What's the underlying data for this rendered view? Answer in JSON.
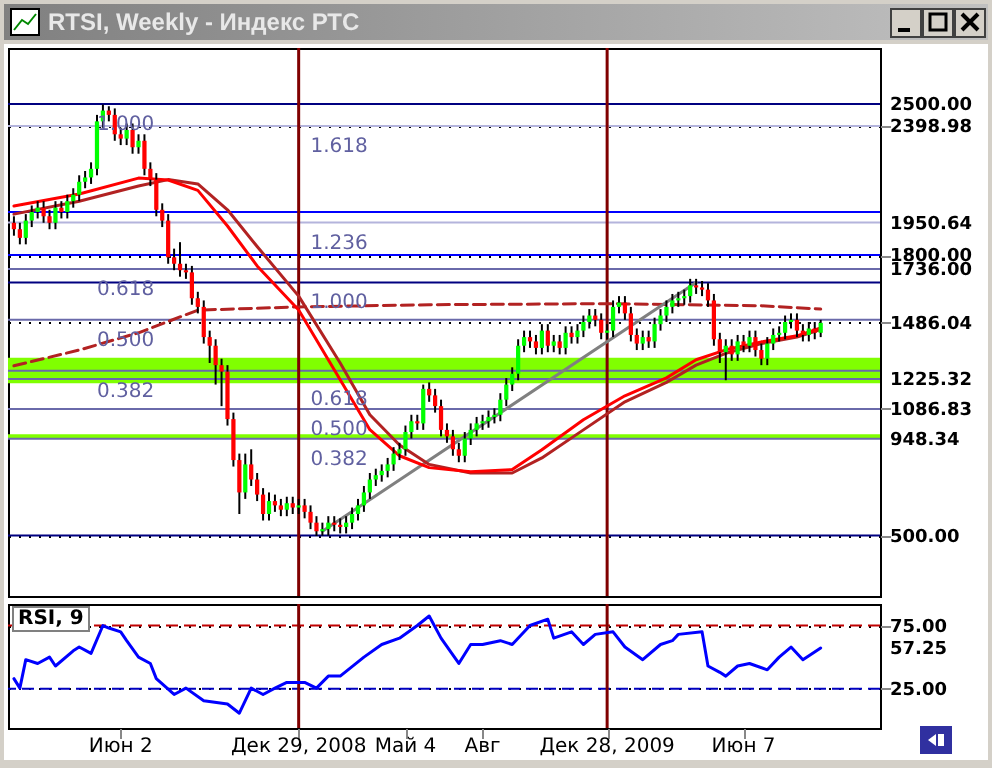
{
  "chart_data": [
    {
      "type": "candlestick",
      "title": "RTSI, Weekly - Индекс РТС",
      "xlim": [
        "2008-01-21",
        "2010-11-15"
      ],
      "ylim": [
        220,
        2760
      ],
      "yticks": [
        {
          "value": 500,
          "label": "500.00"
        },
        {
          "value": 948.34,
          "label": "948.34"
        },
        {
          "value": 1086.83,
          "label": "1086.83"
        },
        {
          "value": 1225.32,
          "label": "1225.32"
        },
        {
          "value": 1486.04,
          "label": "1486.04"
        },
        {
          "value": 1736,
          "label": "1736.00"
        },
        {
          "value": 1800,
          "label": "1800.00"
        },
        {
          "value": 1950.64,
          "label": "1950.64"
        },
        {
          "value": 2398.98,
          "label": "2398.98"
        },
        {
          "value": 2500,
          "label": "2500.00"
        }
      ],
      "tick_labels": "y",
      "grid": "y",
      "x": [
        "2008-01-28",
        "2008-02-04",
        "2008-02-11",
        "2008-02-18",
        "2008-02-25",
        "2008-03-03",
        "2008-03-10",
        "2008-03-17",
        "2008-03-24",
        "2008-03-31",
        "2008-04-07",
        "2008-04-14",
        "2008-04-21",
        "2008-04-28",
        "2008-05-05",
        "2008-05-12",
        "2008-05-19",
        "2008-05-26",
        "2008-06-02",
        "2008-06-09",
        "2008-06-16",
        "2008-06-23",
        "2008-06-30",
        "2008-07-07",
        "2008-07-14",
        "2008-07-21",
        "2008-07-28",
        "2008-08-04",
        "2008-08-11",
        "2008-08-18",
        "2008-08-25",
        "2008-09-01",
        "2008-09-08",
        "2008-09-15",
        "2008-09-22",
        "2008-09-29",
        "2008-10-06",
        "2008-10-13",
        "2008-10-20",
        "2008-10-27",
        "2008-11-03",
        "2008-11-10",
        "2008-11-17",
        "2008-11-24",
        "2008-12-01",
        "2008-12-08",
        "2008-12-15",
        "2008-12-22",
        "2008-12-29",
        "2009-01-05",
        "2009-01-12",
        "2009-01-19",
        "2009-01-26",
        "2009-02-02",
        "2009-02-09",
        "2009-02-16",
        "2009-02-23",
        "2009-03-02",
        "2009-03-09",
        "2009-03-16",
        "2009-03-23",
        "2009-03-30",
        "2009-04-06",
        "2009-04-13",
        "2009-04-20",
        "2009-04-27",
        "2009-05-04",
        "2009-05-11",
        "2009-05-18",
        "2009-05-25",
        "2009-06-01",
        "2009-06-08",
        "2009-06-15",
        "2009-06-22",
        "2009-06-29",
        "2009-07-06",
        "2009-07-13",
        "2009-07-20",
        "2009-07-27",
        "2009-08-03",
        "2009-08-10",
        "2009-08-17",
        "2009-08-24",
        "2009-08-31",
        "2009-09-07",
        "2009-09-14",
        "2009-09-21",
        "2009-09-28",
        "2009-10-05",
        "2009-10-12",
        "2009-10-19",
        "2009-10-26",
        "2009-11-02",
        "2009-11-09",
        "2009-11-16",
        "2009-11-23",
        "2009-11-30",
        "2009-12-07",
        "2009-12-14",
        "2009-12-21",
        "2009-12-28",
        "2010-01-04",
        "2010-01-11",
        "2010-01-18",
        "2010-01-25",
        "2010-02-01",
        "2010-02-08",
        "2010-02-15",
        "2010-02-22",
        "2010-03-01",
        "2010-03-08",
        "2010-03-15",
        "2010-03-22",
        "2010-03-29",
        "2010-04-05",
        "2010-04-12",
        "2010-04-19",
        "2010-04-26",
        "2010-05-03",
        "2010-05-10",
        "2010-05-17",
        "2010-05-24",
        "2010-05-31",
        "2010-06-07",
        "2010-06-14",
        "2010-06-21",
        "2010-06-28",
        "2010-07-05",
        "2010-07-12",
        "2010-07-19",
        "2010-07-26",
        "2010-08-02",
        "2010-08-09",
        "2010-08-16",
        "2010-08-23",
        "2010-08-30",
        "2010-09-06"
      ],
      "ohlc": [
        [
          1950,
          1980,
          1890,
          1920
        ],
        [
          1920,
          1950,
          1850,
          1880
        ],
        [
          1880,
          1990,
          1850,
          1960
        ],
        [
          1960,
          2030,
          1930,
          2000
        ],
        [
          2000,
          2050,
          1970,
          2020
        ],
        [
          2020,
          2050,
          1950,
          1980
        ],
        [
          1980,
          2010,
          1920,
          1950
        ],
        [
          1950,
          2050,
          1920,
          2020
        ],
        [
          2020,
          2050,
          1970,
          2000
        ],
        [
          2000,
          2080,
          1970,
          2050
        ],
        [
          2050,
          2110,
          2020,
          2080
        ],
        [
          2080,
          2170,
          2050,
          2140
        ],
        [
          2140,
          2190,
          2110,
          2160
        ],
        [
          2160,
          2230,
          2130,
          2200
        ],
        [
          2200,
          2450,
          2170,
          2420
        ],
        [
          2420,
          2498,
          2390,
          2470
        ],
        [
          2470,
          2490,
          2420,
          2450
        ],
        [
          2450,
          2480,
          2330,
          2360
        ],
        [
          2360,
          2390,
          2310,
          2340
        ],
        [
          2340,
          2410,
          2310,
          2380
        ],
        [
          2380,
          2410,
          2270,
          2300
        ],
        [
          2300,
          2360,
          2270,
          2330
        ],
        [
          2330,
          2360,
          2170,
          2200
        ],
        [
          2200,
          2230,
          2120,
          2150
        ],
        [
          2150,
          2180,
          1980,
          2010
        ],
        [
          2010,
          2040,
          1930,
          1960
        ],
        [
          1960,
          1990,
          1760,
          1790
        ],
        [
          1790,
          1830,
          1730,
          1760
        ],
        [
          1760,
          1860,
          1700,
          1730
        ],
        [
          1730,
          1760,
          1690,
          1720
        ],
        [
          1720,
          1750,
          1570,
          1600
        ],
        [
          1600,
          1630,
          1530,
          1560
        ],
        [
          1560,
          1590,
          1390,
          1420
        ],
        [
          1420,
          1450,
          1300,
          1380
        ],
        [
          1380,
          1410,
          1200,
          1290
        ],
        [
          1290,
          1320,
          1100,
          1260
        ],
        [
          1260,
          1290,
          1010,
          1040
        ],
        [
          1040,
          1070,
          820,
          850
        ],
        [
          850,
          880,
          600,
          700
        ],
        [
          700,
          880,
          670,
          830
        ],
        [
          830,
          900,
          730,
          760
        ],
        [
          760,
          790,
          660,
          690
        ],
        [
          690,
          720,
          570,
          600
        ],
        [
          600,
          700,
          570,
          660
        ],
        [
          660,
          690,
          610,
          640
        ],
        [
          640,
          670,
          590,
          620
        ],
        [
          620,
          680,
          590,
          650
        ],
        [
          650,
          680,
          600,
          630
        ],
        [
          630,
          670,
          600,
          640
        ],
        [
          640,
          670,
          580,
          610
        ],
        [
          610,
          640,
          530,
          560
        ],
        [
          560,
          590,
          498,
          520
        ],
        [
          520,
          560,
          500,
          530
        ],
        [
          530,
          590,
          500,
          560
        ],
        [
          560,
          590,
          520,
          550
        ],
        [
          550,
          580,
          510,
          540
        ],
        [
          540,
          590,
          510,
          560
        ],
        [
          560,
          630,
          530,
          600
        ],
        [
          600,
          670,
          570,
          640
        ],
        [
          640,
          730,
          610,
          700
        ],
        [
          700,
          790,
          670,
          760
        ],
        [
          760,
          810,
          730,
          780
        ],
        [
          780,
          830,
          750,
          800
        ],
        [
          800,
          860,
          770,
          830
        ],
        [
          830,
          910,
          800,
          880
        ],
        [
          880,
          930,
          850,
          900
        ],
        [
          900,
          1010,
          870,
          980
        ],
        [
          980,
          1060,
          950,
          1030
        ],
        [
          1030,
          1060,
          990,
          1020
        ],
        [
          1020,
          1200,
          990,
          1180
        ],
        [
          1180,
          1210,
          1120,
          1150
        ],
        [
          1150,
          1180,
          1070,
          1100
        ],
        [
          1100,
          1130,
          960,
          990
        ],
        [
          990,
          1020,
          930,
          960
        ],
        [
          960,
          990,
          870,
          900
        ],
        [
          900,
          930,
          840,
          870
        ],
        [
          870,
          980,
          840,
          950
        ],
        [
          950,
          1020,
          920,
          990
        ],
        [
          990,
          1050,
          960,
          1020
        ],
        [
          1020,
          1060,
          990,
          1030
        ],
        [
          1030,
          1080,
          1000,
          1050
        ],
        [
          1050,
          1090,
          1020,
          1060
        ],
        [
          1060,
          1160,
          1030,
          1130
        ],
        [
          1130,
          1230,
          1100,
          1200
        ],
        [
          1200,
          1280,
          1170,
          1250
        ],
        [
          1250,
          1410,
          1220,
          1380
        ],
        [
          1380,
          1450,
          1350,
          1420
        ],
        [
          1420,
          1450,
          1370,
          1400
        ],
        [
          1400,
          1430,
          1340,
          1370
        ],
        [
          1370,
          1480,
          1340,
          1450
        ],
        [
          1450,
          1480,
          1350,
          1380
        ],
        [
          1380,
          1430,
          1350,
          1400
        ],
        [
          1400,
          1430,
          1340,
          1370
        ],
        [
          1370,
          1470,
          1340,
          1440
        ],
        [
          1440,
          1470,
          1390,
          1420
        ],
        [
          1420,
          1480,
          1390,
          1450
        ],
        [
          1450,
          1520,
          1420,
          1490
        ],
        [
          1490,
          1550,
          1460,
          1520
        ],
        [
          1520,
          1550,
          1470,
          1500
        ],
        [
          1500,
          1530,
          1410,
          1440
        ],
        [
          1440,
          1480,
          1410,
          1450
        ],
        [
          1450,
          1590,
          1420,
          1560
        ],
        [
          1560,
          1610,
          1530,
          1580
        ],
        [
          1580,
          1610,
          1500,
          1530
        ],
        [
          1530,
          1560,
          1400,
          1430
        ],
        [
          1430,
          1460,
          1360,
          1390
        ],
        [
          1390,
          1450,
          1360,
          1420
        ],
        [
          1420,
          1450,
          1370,
          1400
        ],
        [
          1400,
          1510,
          1370,
          1480
        ],
        [
          1480,
          1550,
          1450,
          1520
        ],
        [
          1520,
          1590,
          1490,
          1560
        ],
        [
          1560,
          1620,
          1530,
          1590
        ],
        [
          1590,
          1630,
          1560,
          1600
        ],
        [
          1600,
          1640,
          1570,
          1610
        ],
        [
          1610,
          1690,
          1580,
          1660
        ],
        [
          1660,
          1690,
          1620,
          1650
        ],
        [
          1650,
          1680,
          1610,
          1640
        ],
        [
          1640,
          1670,
          1560,
          1590
        ],
        [
          1590,
          1620,
          1380,
          1410
        ],
        [
          1410,
          1440,
          1300,
          1350
        ],
        [
          1350,
          1410,
          1220,
          1380
        ],
        [
          1380,
          1410,
          1310,
          1340
        ],
        [
          1340,
          1430,
          1310,
          1400
        ],
        [
          1400,
          1430,
          1350,
          1380
        ],
        [
          1380,
          1450,
          1350,
          1420
        ],
        [
          1420,
          1450,
          1330,
          1360
        ],
        [
          1360,
          1390,
          1290,
          1320
        ],
        [
          1320,
          1420,
          1290,
          1390
        ],
        [
          1390,
          1460,
          1360,
          1430
        ],
        [
          1430,
          1470,
          1400,
          1440
        ],
        [
          1440,
          1520,
          1410,
          1490
        ],
        [
          1490,
          1530,
          1460,
          1500
        ],
        [
          1500,
          1530,
          1420,
          1450
        ],
        [
          1450,
          1480,
          1400,
          1430
        ],
        [
          1430,
          1490,
          1400,
          1460
        ],
        [
          1460,
          1490,
          1410,
          1440
        ],
        [
          1440,
          1500,
          1420,
          1486.04
        ]
      ],
      "series": [
        {
          "type": "line",
          "color": "#b22222",
          "line_style": "dashed",
          "x": [
            "2008-01-28",
            "2008-04-14",
            "2008-06-23",
            "2008-09-01",
            "2008-12-29",
            "2009-06-01",
            "2009-12-28",
            "2010-06-28",
            "2010-09-06"
          ],
          "values": [
            1287,
            1360,
            1440,
            1545,
            1560,
            1570,
            1575,
            1565,
            1550
          ]
        },
        {
          "type": "line",
          "color": "#808080",
          "line_style": "solid",
          "x": [
            "2009-01-26",
            "2010-04-12"
          ],
          "values": [
            520,
            1673.6
          ]
        },
        {
          "type": "line",
          "color": "#b22222",
          "line_style": "solid",
          "x": [
            "2008-01-28",
            "2008-04-14",
            "2008-06-23",
            "2008-07-28",
            "2008-09-01",
            "2008-10-06",
            "2008-11-10",
            "2008-12-29",
            "2009-02-16",
            "2009-03-23",
            "2009-04-27",
            "2009-06-01",
            "2009-07-20",
            "2009-09-07",
            "2009-10-12",
            "2009-11-30",
            "2010-01-18",
            "2010-03-08",
            "2010-04-12",
            "2010-05-17",
            "2010-06-28",
            "2010-08-09",
            "2010-09-06"
          ],
          "values": [
            1990,
            2050,
            2120,
            2150,
            2130,
            2010,
            1840,
            1610,
            1300,
            1060,
            920,
            830,
            790,
            790,
            860,
            990,
            1120,
            1210,
            1290,
            1345,
            1390,
            1420,
            1455
          ]
        },
        {
          "type": "line",
          "color": "#ff0000",
          "line_style": "solid",
          "x": [
            "2008-01-28",
            "2008-04-14",
            "2008-06-23",
            "2008-07-28",
            "2008-09-01",
            "2008-10-06",
            "2008-11-10",
            "2008-12-29",
            "2009-02-16",
            "2009-03-23",
            "2009-04-27",
            "2009-06-01",
            "2009-07-20",
            "2009-09-07",
            "2009-10-12",
            "2009-11-30",
            "2010-01-18",
            "2010-03-08",
            "2010-04-12",
            "2010-05-17",
            "2010-06-28",
            "2010-08-09",
            "2010-09-06"
          ],
          "values": [
            2028,
            2083,
            2157,
            2148,
            2100,
            1935,
            1750,
            1546,
            1222,
            991,
            870,
            815,
            796,
            806,
            898,
            1037,
            1148,
            1231,
            1315,
            1361,
            1398,
            1426,
            1463
          ]
        }
      ],
      "bands": [
        {
          "axis": "y",
          "from": 1206,
          "to": 1324,
          "color": "#80ff00"
        },
        {
          "axis": "y",
          "from": 950,
          "to": 970,
          "color": "#80ff00"
        }
      ],
      "ref_lines": [
        {
          "axis": "y",
          "value": 2500,
          "color": "#000080"
        },
        {
          "axis": "y",
          "value": 2398.98,
          "color": "#b4b4dc"
        },
        {
          "axis": "y",
          "value": 2000,
          "color": "#0000ff"
        },
        {
          "axis": "y",
          "value": 1950.64,
          "color": "#b4b4dc"
        },
        {
          "axis": "y",
          "value": 1800,
          "color": "#0000ff"
        },
        {
          "axis": "y",
          "value": 1736,
          "color": "#6a6aaa"
        },
        {
          "axis": "y",
          "value": 1673.6,
          "color": "#000080"
        },
        {
          "axis": "y",
          "value": 1500,
          "color": "#6a6aaa"
        },
        {
          "axis": "y",
          "value": 1264,
          "color": "#6a6aaa"
        },
        {
          "axis": "y",
          "value": 1225.32,
          "color": "#6a6aaa"
        },
        {
          "axis": "y",
          "value": 1086.83,
          "color": "#6a6aaa"
        },
        {
          "axis": "y",
          "value": 948.34,
          "color": "#6a6aaa"
        },
        {
          "axis": "y",
          "value": 500,
          "color": "#000080"
        },
        {
          "axis": "x",
          "value": "2008-12-29",
          "color": "#800000"
        },
        {
          "axis": "x",
          "value": "2009-12-28",
          "color": "#800000"
        }
      ],
      "annotations": [
        {
          "text": "1.000",
          "x": "2008-05-05",
          "y": 2500
        },
        {
          "text": "0.618",
          "x": "2008-05-05",
          "y": 1736
        },
        {
          "text": "0.500",
          "x": "2008-05-05",
          "y": 1500
        },
        {
          "text": "0.382",
          "x": "2008-05-05",
          "y": 1264
        },
        {
          "text": "1.618",
          "x": "2009-01-12",
          "y": 2398.98
        },
        {
          "text": "1.236",
          "x": "2009-01-12",
          "y": 1950.64
        },
        {
          "text": "1.000",
          "x": "2009-01-12",
          "y": 1673.6
        },
        {
          "text": "0.618",
          "x": "2009-01-12",
          "y": 1225.32
        },
        {
          "text": "0.500",
          "x": "2009-01-12",
          "y": 1086.83
        },
        {
          "text": "0.382",
          "x": "2009-01-12",
          "y": 948.34
        }
      ]
    },
    {
      "type": "line",
      "title": "RSI, 9",
      "xlim": [
        "2008-01-21",
        "2010-11-15"
      ],
      "ylim": [
        -6,
        92
      ],
      "xticks": [
        {
          "value": "2008-06-02",
          "label": "Июн 2"
        },
        {
          "value": "2008-12-29",
          "label": "Дек 29, 2008"
        },
        {
          "value": "2009-05-04",
          "label": "Май 4"
        },
        {
          "value": "2009-08-03",
          "label": "Авг"
        },
        {
          "value": "2009-12-28",
          "label": "Дек 28, 2009"
        },
        {
          "value": "2010-06-07",
          "label": "Июн 7"
        }
      ],
      "yticks": [
        {
          "value": 25,
          "label": "25.00"
        },
        {
          "value": 57.25,
          "label": "57.25"
        },
        {
          "value": 75,
          "label": "75.00"
        }
      ],
      "grid": "y",
      "x": [
        "2008-01-28",
        "2008-02-04",
        "2008-02-11",
        "2008-02-25",
        "2008-03-10",
        "2008-03-17",
        "2008-04-07",
        "2008-04-14",
        "2008-04-28",
        "2008-05-12",
        "2008-05-19",
        "2008-06-02",
        "2008-06-09",
        "2008-06-23",
        "2008-07-07",
        "2008-07-14",
        "2008-08-04",
        "2008-08-18",
        "2008-09-08",
        "2008-10-06",
        "2008-10-20",
        "2008-11-03",
        "2008-11-17",
        "2008-12-01",
        "2008-12-15",
        "2009-01-05",
        "2009-01-19",
        "2009-02-02",
        "2009-02-16",
        "2009-03-16",
        "2009-04-06",
        "2009-04-27",
        "2009-05-18",
        "2009-06-01",
        "2009-06-15",
        "2009-07-06",
        "2009-07-20",
        "2009-08-03",
        "2009-08-24",
        "2009-09-07",
        "2009-09-28",
        "2009-10-19",
        "2009-10-26",
        "2009-11-16",
        "2009-11-30",
        "2009-12-14",
        "2010-01-04",
        "2010-01-18",
        "2010-02-08",
        "2010-03-01",
        "2010-03-15",
        "2010-03-22",
        "2010-04-19",
        "2010-04-26",
        "2010-05-10",
        "2010-05-17",
        "2010-05-31",
        "2010-06-14",
        "2010-07-05",
        "2010-07-19",
        "2010-08-02",
        "2010-08-16",
        "2010-09-06"
      ],
      "series": [
        {
          "color": "#0000ff",
          "values": [
            33,
            25.5,
            48,
            45,
            50,
            43,
            55,
            58,
            53,
            75,
            73,
            70,
            63,
            50,
            45,
            33,
            20.5,
            25.5,
            15.6,
            13,
            5.7,
            25.5,
            20.5,
            25.5,
            30,
            30,
            25.5,
            35,
            35,
            50,
            60,
            65,
            75,
            82.5,
            65,
            45,
            60,
            60,
            63,
            60,
            75,
            80,
            65,
            70,
            60,
            68,
            70,
            58,
            48,
            60,
            63,
            68,
            70,
            43,
            38,
            35,
            43,
            45,
            40,
            50,
            58,
            48,
            57.25
          ]
        }
      ],
      "ref_lines": [
        {
          "axis": "y",
          "value": 75,
          "color": "#c00000",
          "line_style": "dashed"
        },
        {
          "axis": "y",
          "value": 25,
          "color": "#0000c0",
          "line_style": "dashed"
        },
        {
          "axis": "x",
          "value": "2008-12-29",
          "color": "#800000"
        },
        {
          "axis": "x",
          "value": "2009-12-28",
          "color": "#800000"
        }
      ]
    }
  ]
}
